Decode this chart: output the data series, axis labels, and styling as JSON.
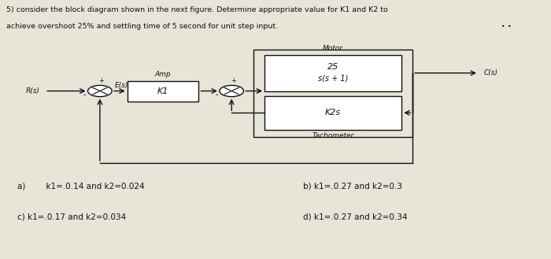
{
  "title_line1": "5) consider the block diagram shown in the next figure. Determine appropriate value for K1 and K2 to",
  "title_line2": "achieve overshoot 25% and settling time of 5 second for unit step input.",
  "background_color": "#e8e4d8",
  "text_color": "#111111",
  "answer_a": "a)        k1=.0.14 and k2=0.024",
  "answer_b": "b) k1=.0.27 and k2=0.3",
  "answer_c": "c) k1=.0.17 and k2=0.034",
  "answer_d": "d) k1=.0.27 and k2=0.34",
  "label_Rs": "R(s)",
  "label_Es": "E(s)",
  "label_Cs": "C(s)",
  "label_K1": "K1",
  "label_K2s": "K2s",
  "label_motor": "Motor",
  "label_motor_tf_num": "25",
  "label_motor_tf_den": "s(s + 1)",
  "label_amp": "Amp",
  "label_tacho": "Tachometer"
}
